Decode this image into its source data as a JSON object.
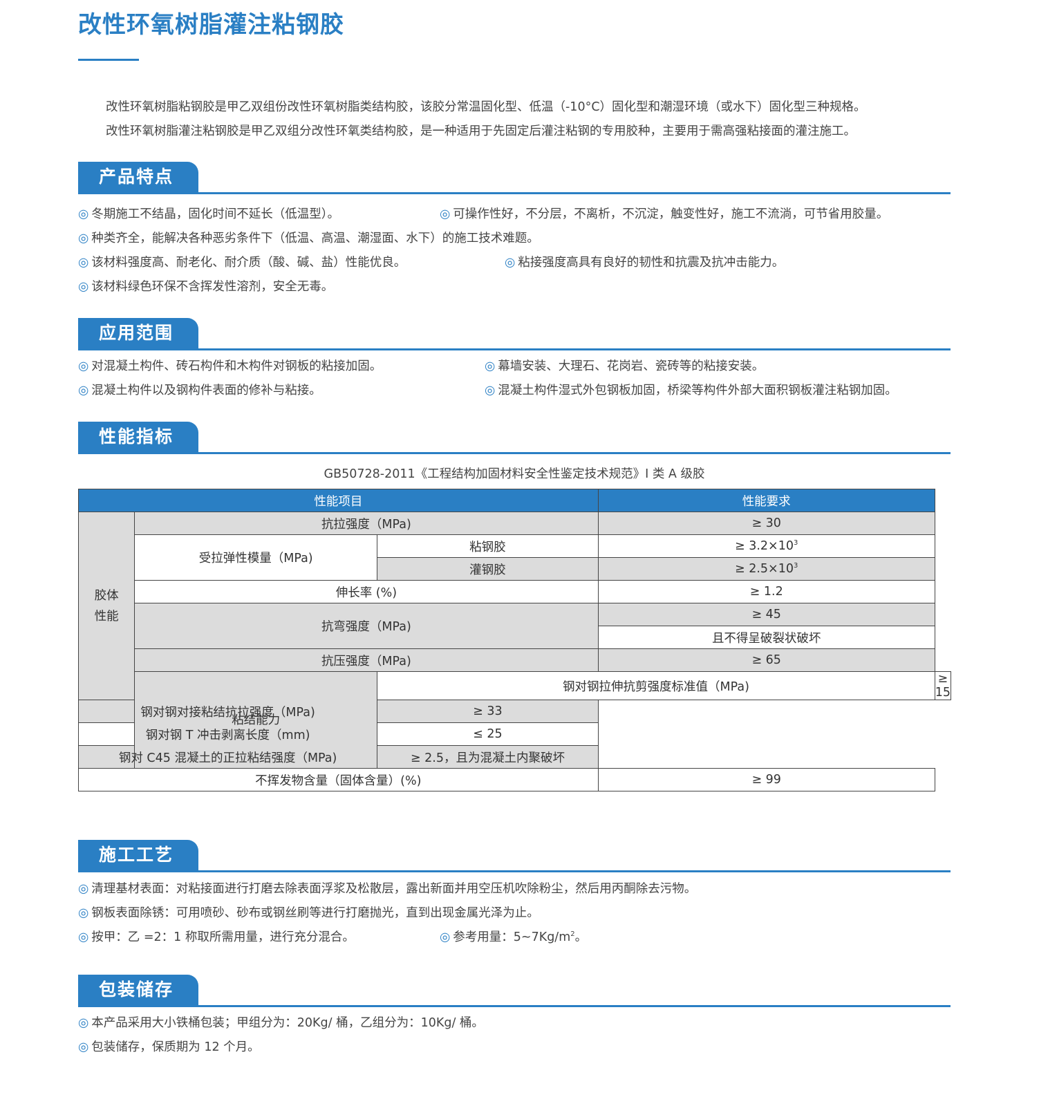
{
  "title": "改性环氧树脂灌注粘钢胶",
  "intro": [
    "改性环氧树脂粘钢胶是甲乙双组份改性环氧树脂类结构胶，该胶分常温固化型、低温（-10°C）固化型和潮湿环境（或水下）固化型三种规格。",
    "改性环氧树脂灌注粘钢胶是甲乙双组分改性环氧类结构胶，是一种适用于先固定后灌注粘钢的专用胶种，主要用于需高强粘接面的灌注施工。"
  ],
  "bullet": "◎",
  "accent": "#2a7fc4",
  "sections": {
    "features": {
      "title": "产品特点",
      "items": [
        "冬期施工不结晶，固化时间不延长（低温型）。",
        "可操作性好，不分层，不离析，不沉淀，触变性好，施工不流淌，可节省用胶量。",
        "种类齐全，能解决各种恶劣条件下（低温、高温、潮湿面、水下）的施工技术难题。",
        "该材料强度高、耐老化、耐介质（酸、碱、盐）性能优良。",
        "粘接强度高具有良好的韧性和抗震及抗冲击能力。",
        "该材料绿色环保不含挥发性溶剂，安全无毒。"
      ]
    },
    "scope": {
      "title": "应用范围",
      "items": [
        "对混凝土构件、砖石构件和木构件对钢板的粘接加固。",
        "幕墙安装、大理石、花岗岩、瓷砖等的粘接安装。",
        "混凝土构件以及钢构件表面的修补与粘接。",
        "混凝土构件湿式外包钢板加固，桥梁等构件外部大面积钢板灌注粘钢加固。"
      ]
    },
    "performance": {
      "title": "性能指标",
      "caption": "GB50728-2011《工程结构加固材料安全性鉴定技术规范》I 类 A 级胶",
      "table": {
        "headers": [
          "性能项目",
          "性能要求"
        ],
        "group1": "胶体性能",
        "group2": "粘结能力",
        "rows": [
          {
            "item": "抗拉强度（MPa)",
            "req": "≥ 30"
          },
          {
            "item": "受拉弹性模量（MPa)",
            "sub": "粘钢胶",
            "req": "≥ 3.2×10",
            "exp": "3"
          },
          {
            "sub": "灌钢胶",
            "req": "≥ 2.5×10",
            "exp": "3"
          },
          {
            "item": "伸长率 (%)",
            "req": "≥ 1.2"
          },
          {
            "item": "抗弯强度（MPa)",
            "req": "≥ 45",
            "req2": "且不得呈破裂状破坏"
          },
          {
            "item": "抗压强度（MPa)",
            "req": "≥ 65"
          },
          {
            "item": "钢对钢拉伸抗剪强度标准值（MPa)",
            "req": "≥ 15"
          },
          {
            "item": "钢对钢对接粘结抗拉强度（MPa)",
            "req": "≥ 33"
          },
          {
            "item": "钢对钢 T 冲击剥离长度（mm)",
            "req": "≤ 25"
          },
          {
            "item": "钢对 C45 混凝土的正拉粘结强度（MPa)",
            "req": "≥ 2.5，且为混凝土内聚破坏"
          },
          {
            "item": "不挥发物含量（固体含量）(%)",
            "req": "≥ 99"
          }
        ]
      }
    },
    "process": {
      "title": "施工工艺",
      "items": [
        "清理基材表面：对粘接面进行打磨去除表面浮浆及松散层，露出新面并用空压机吹除粉尘，然后用丙酮除去污物。",
        "钢板表面除锈：可用喷砂、砂布或钢丝刷等进行打磨抛光，直到出现金属光泽为止。",
        "按甲：乙 =2：1 称取所需用量，进行充分混合。",
        "参考用量：5~7Kg/m"
      ],
      "unit_exp": "2",
      "unit_end": "。"
    },
    "storage": {
      "title": "包装储存",
      "items": [
        "本产品采用大小铁桶包装；甲组分为：20Kg/ 桶，乙组分为：10Kg/ 桶。",
        "包装储存，保质期为 12 个月。"
      ]
    }
  }
}
